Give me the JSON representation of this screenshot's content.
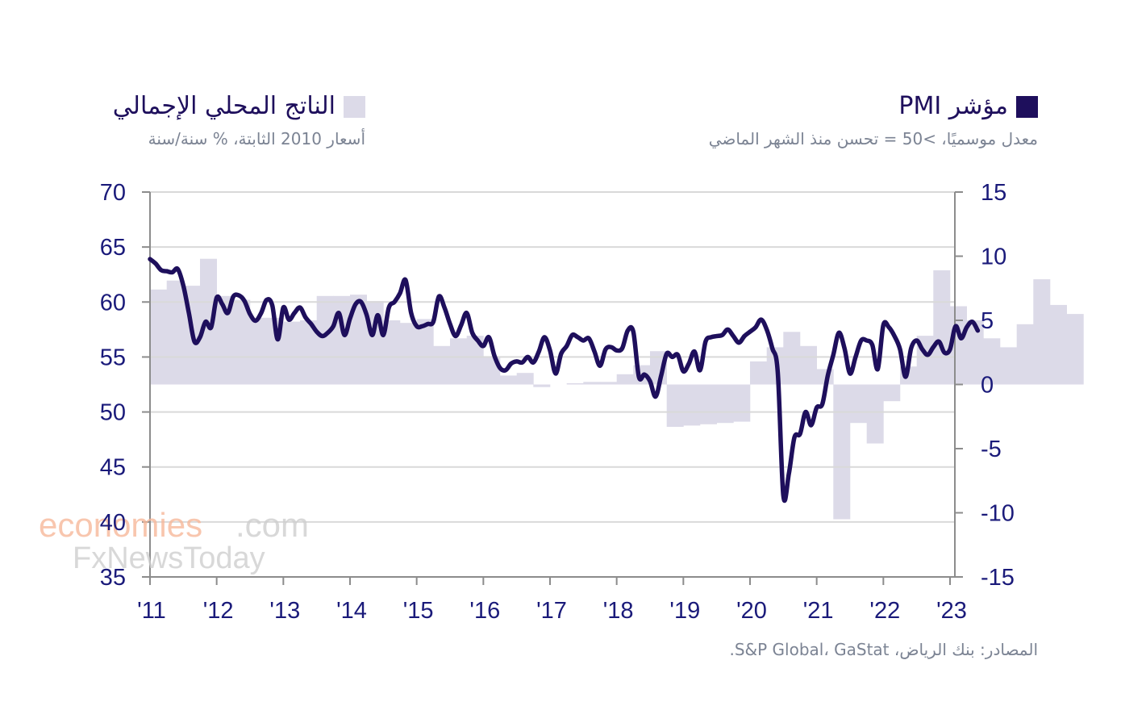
{
  "legend": {
    "pmi": {
      "title": "مؤشر PMI",
      "subtitle": "معدل موسميًا، >50 = تحسن منذ الشهر الماضي",
      "color": "#1e0f5c"
    },
    "gdp": {
      "title": "الناتج المحلي الإجمالي",
      "subtitle": "أسعار 2010 الثابتة، % سنة/سنة",
      "color": "#dcdae8"
    }
  },
  "source": "المصادر: بنك الرياض، S&P Global، GaStat.",
  "watermark": {
    "line1a": "economies",
    "line1b": ".com",
    "line2": "FxNewsToday"
  },
  "chart_data": {
    "type": "line+bar",
    "title": "",
    "xlabel": "",
    "x_ticks": [
      "'11",
      "'12",
      "'13",
      "'14",
      "'15",
      "'16",
      "'17",
      "'18",
      "'19",
      "'20",
      "'21",
      "'22",
      "'23"
    ],
    "x_range": [
      2011,
      2023
    ],
    "left_axis": {
      "label": "PMI",
      "ylim": [
        35,
        70
      ],
      "ticks": [
        "70",
        "65",
        "60",
        "55",
        "50",
        "45",
        "40",
        "35"
      ]
    },
    "right_axis": {
      "label": "GDP % y/y",
      "ylim": [
        -15,
        15
      ],
      "ticks": [
        "15",
        "10",
        "5",
        "0",
        "-5",
        "-10",
        "-15"
      ]
    },
    "grid": true,
    "series": [
      {
        "name": "مؤشر PMI",
        "type": "line",
        "axis": "left",
        "start": "2011-01",
        "frequency": "monthly",
        "values": [
          63.9,
          63.5,
          62.9,
          62.8,
          62.7,
          63.0,
          61.5,
          59.0,
          56.4,
          56.8,
          58.2,
          57.7,
          60.4,
          59.8,
          59.0,
          60.5,
          60.6,
          60.1,
          58.9,
          58.3,
          59.0,
          60.2,
          59.7,
          56.6,
          59.5,
          58.4,
          59.0,
          59.5,
          58.6,
          58.0,
          57.3,
          56.9,
          57.2,
          57.8,
          59.0,
          57.0,
          58.5,
          59.8,
          60.0,
          58.8,
          57.0,
          58.8,
          57.0,
          59.5,
          60.0,
          60.8,
          62.0,
          59.0,
          57.8,
          57.8,
          58.0,
          58.2,
          60.5,
          59.5,
          58.0,
          56.9,
          57.9,
          59.0,
          57.2,
          56.5,
          56.0,
          56.8,
          55.1,
          54.0,
          53.8,
          54.4,
          54.6,
          54.5,
          55.0,
          54.5,
          55.5,
          56.8,
          55.6,
          53.5,
          55.3,
          56.0,
          57.0,
          56.8,
          56.5,
          56.7,
          55.5,
          54.2,
          55.7,
          55.9,
          55.6,
          55.8,
          57.4,
          57.3,
          53.2,
          53.4,
          52.8,
          51.4,
          53.3,
          55.3,
          55.0,
          55.2,
          53.7,
          54.4,
          55.5,
          53.8,
          56.4,
          56.8,
          56.9,
          57.0,
          57.5,
          56.9,
          56.3,
          56.9,
          57.3,
          57.7,
          58.4,
          57.5,
          55.8,
          53.6,
          42.4,
          44.4,
          47.7,
          48.0,
          50.0,
          48.8,
          50.4,
          50.7,
          53.3,
          55.2,
          57.2,
          55.8,
          53.5,
          55.0,
          56.5,
          56.5,
          56.1,
          53.9,
          57.9,
          57.7,
          56.9,
          55.7,
          53.2,
          55.8,
          56.5,
          55.7,
          55.2,
          55.9,
          56.4,
          55.4,
          55.7,
          57.8,
          56.7,
          57.7,
          58.2,
          57.4
        ]
      },
      {
        "name": "الناتج المحلي الإجمالي",
        "type": "bar",
        "axis": "right",
        "start": "2011-Q1",
        "frequency": "quarterly",
        "values": [
          7.4,
          8.1,
          7.7,
          9.8,
          6.9,
          6.6,
          5.2,
          5.2,
          4.9,
          5.0,
          6.9,
          6.9,
          7.0,
          6.5,
          5.0,
          4.8,
          5.1,
          3.0,
          3.6,
          3.8,
          2.2,
          0.7,
          0.9,
          -0.2,
          0.0,
          0.1,
          0.2,
          0.2,
          0.8,
          1.5,
          2.6,
          -3.3,
          -3.2,
          -3.1,
          -3.0,
          -2.9,
          1.8,
          2.9,
          4.1,
          3.0,
          1.2,
          -10.5,
          -3.0,
          -4.6,
          -1.3,
          1.4,
          3.8,
          8.9,
          6.1,
          5.0,
          3.6,
          2.9,
          4.7,
          8.2,
          6.2,
          5.5
        ]
      }
    ]
  }
}
